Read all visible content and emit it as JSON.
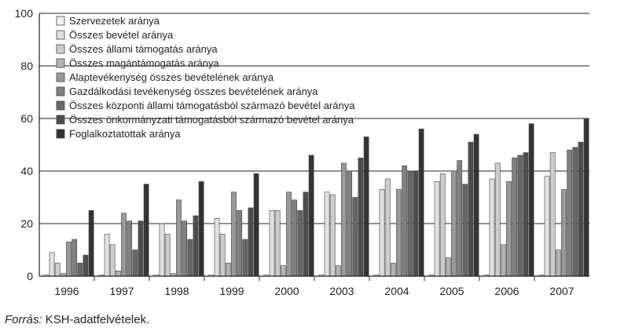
{
  "chart_data": {
    "type": "bar",
    "categories": [
      "1996",
      "1997",
      "1998",
      "1999",
      "2000",
      "2003",
      "2004",
      "2005",
      "2006",
      "2007"
    ],
    "series": [
      {
        "name": "Szervezetek aránya",
        "color": "#f2f2f2",
        "values": [
          0.5,
          0.5,
          0.5,
          0.5,
          0.5,
          0.5,
          0.5,
          0.5,
          0.5,
          0.5
        ]
      },
      {
        "name": "Összes bevétel aránya",
        "color": "#e0e0e0",
        "values": [
          9,
          16,
          20,
          22,
          25,
          32,
          33,
          36,
          37,
          38
        ]
      },
      {
        "name": "Összes állami támogatás aránya",
        "color": "#cccccc",
        "values": [
          5,
          12,
          16,
          16,
          25,
          31,
          37,
          39,
          43,
          47
        ]
      },
      {
        "name": "Összes magántámogatás aránya",
        "color": "#b3b3b3",
        "values": [
          1,
          2,
          1,
          5,
          4,
          4,
          5,
          7,
          12,
          10
        ]
      },
      {
        "name": "Alaptevékenység összes bevételének aránya",
        "color": "#999999",
        "values": [
          13,
          24,
          29,
          32,
          32,
          43,
          33,
          40,
          36,
          33
        ]
      },
      {
        "name": "Gazdálkodási tevékenység összes bevételének aránya",
        "color": "#808080",
        "values": [
          14,
          21,
          21,
          25,
          29,
          40,
          42,
          44,
          45,
          48
        ]
      },
      {
        "name": "Összes központi állami támogatásból származó bevétel aránya",
        "color": "#666666",
        "values": [
          5,
          10,
          14,
          14,
          25,
          30,
          40,
          35,
          46,
          49
        ]
      },
      {
        "name": "Összes önkormányzati támogatásból származó bevétel aránya",
        "color": "#4d4d4d",
        "values": [
          8,
          21,
          23,
          26,
          32,
          45,
          40,
          51,
          47,
          51
        ]
      },
      {
        "name": "Foglalkoztatottak aránya",
        "color": "#333333",
        "values": [
          25,
          35,
          36,
          39,
          46,
          53,
          56,
          54,
          58,
          60
        ]
      }
    ],
    "yticks": [
      0,
      20,
      40,
      60,
      80,
      100
    ],
    "ylim": [
      0,
      100
    ],
    "grid": true,
    "legend": "top-left",
    "title": "",
    "xlabel": "",
    "ylabel": ""
  },
  "source": {
    "label": "Forrás:",
    "text": " KSH-adatfelvételek."
  }
}
